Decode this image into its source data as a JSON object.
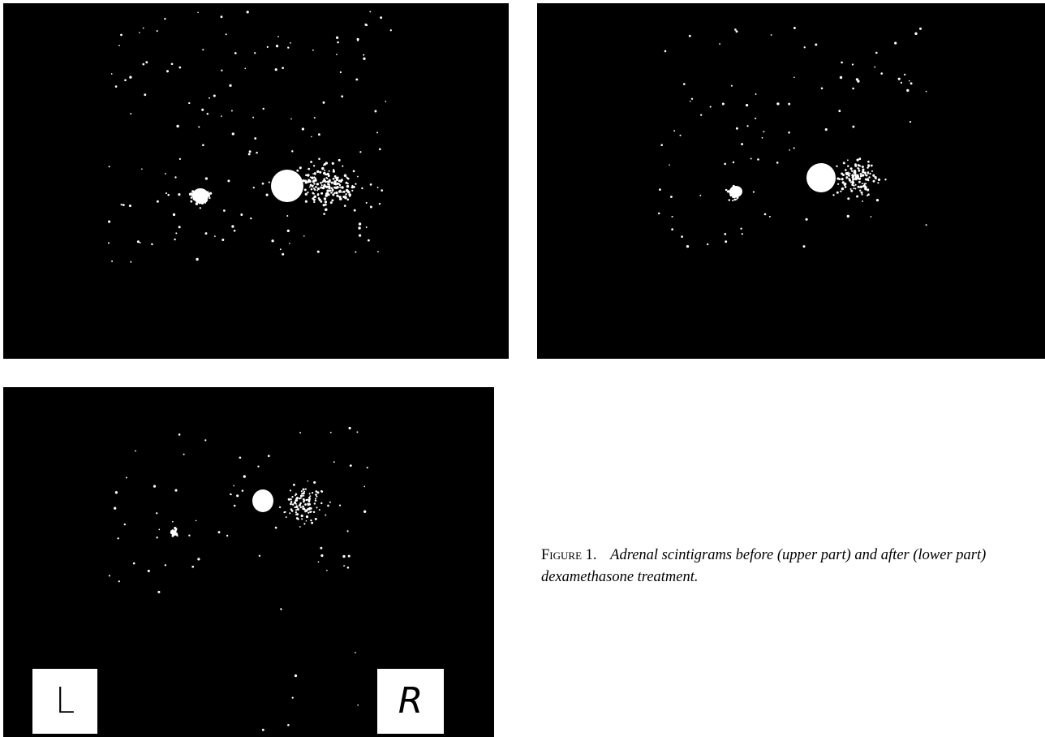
{
  "figure": {
    "panels": [
      {
        "id": "before-a",
        "view": "upper-part"
      },
      {
        "id": "before-b",
        "view": "upper-part"
      },
      {
        "id": "after",
        "view": "lower-part"
      }
    ],
    "markers": {
      "left": "L",
      "right": "R"
    },
    "caption": {
      "label": "Figure",
      "number": "1.",
      "text": "Adrenal scintigrams before (upper part) and after (lower part) dexamethasone treatment."
    }
  }
}
